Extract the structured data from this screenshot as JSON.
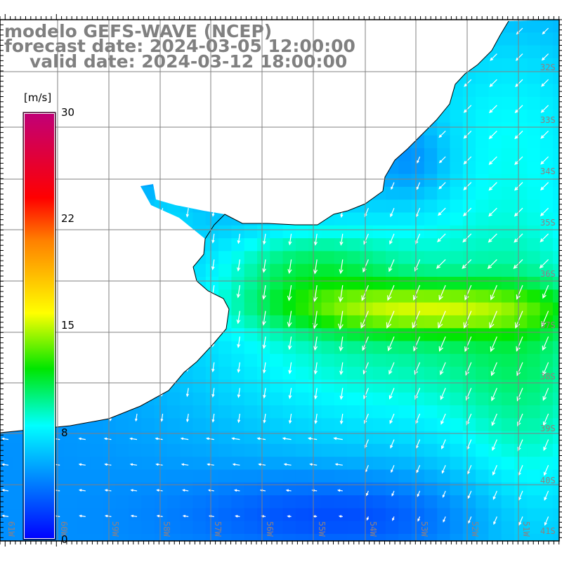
{
  "title": {
    "line1": "modelo GEFS-WAVE (NCEP)",
    "line2": "forecast date: 2024-03-05 12:00:00",
    "line3": "valid date: 2024-03-12 18:00:00"
  },
  "colorbar": {
    "unit": "[m/s]",
    "min": 0,
    "max": 30,
    "ticks": [
      "30",
      "22",
      "15",
      "8",
      "0"
    ],
    "colors": [
      "#0000ff",
      "#00ffff",
      "#00e600",
      "#ffff00",
      "#ff8000",
      "#ff0000",
      "#c00078"
    ]
  },
  "map": {
    "lat_labels": [
      "32S",
      "33S",
      "34S",
      "35S",
      "36S",
      "37S",
      "38S",
      "39S",
      "40S",
      "41S"
    ],
    "lon_labels": [
      "61W",
      "60W",
      "59W",
      "58W",
      "57W",
      "56W",
      "55W",
      "54W",
      "53W",
      "52W",
      "51W"
    ],
    "land_color": "#ffffff",
    "grid_color": "#808080",
    "arrow_color": "#ffffff"
  }
}
